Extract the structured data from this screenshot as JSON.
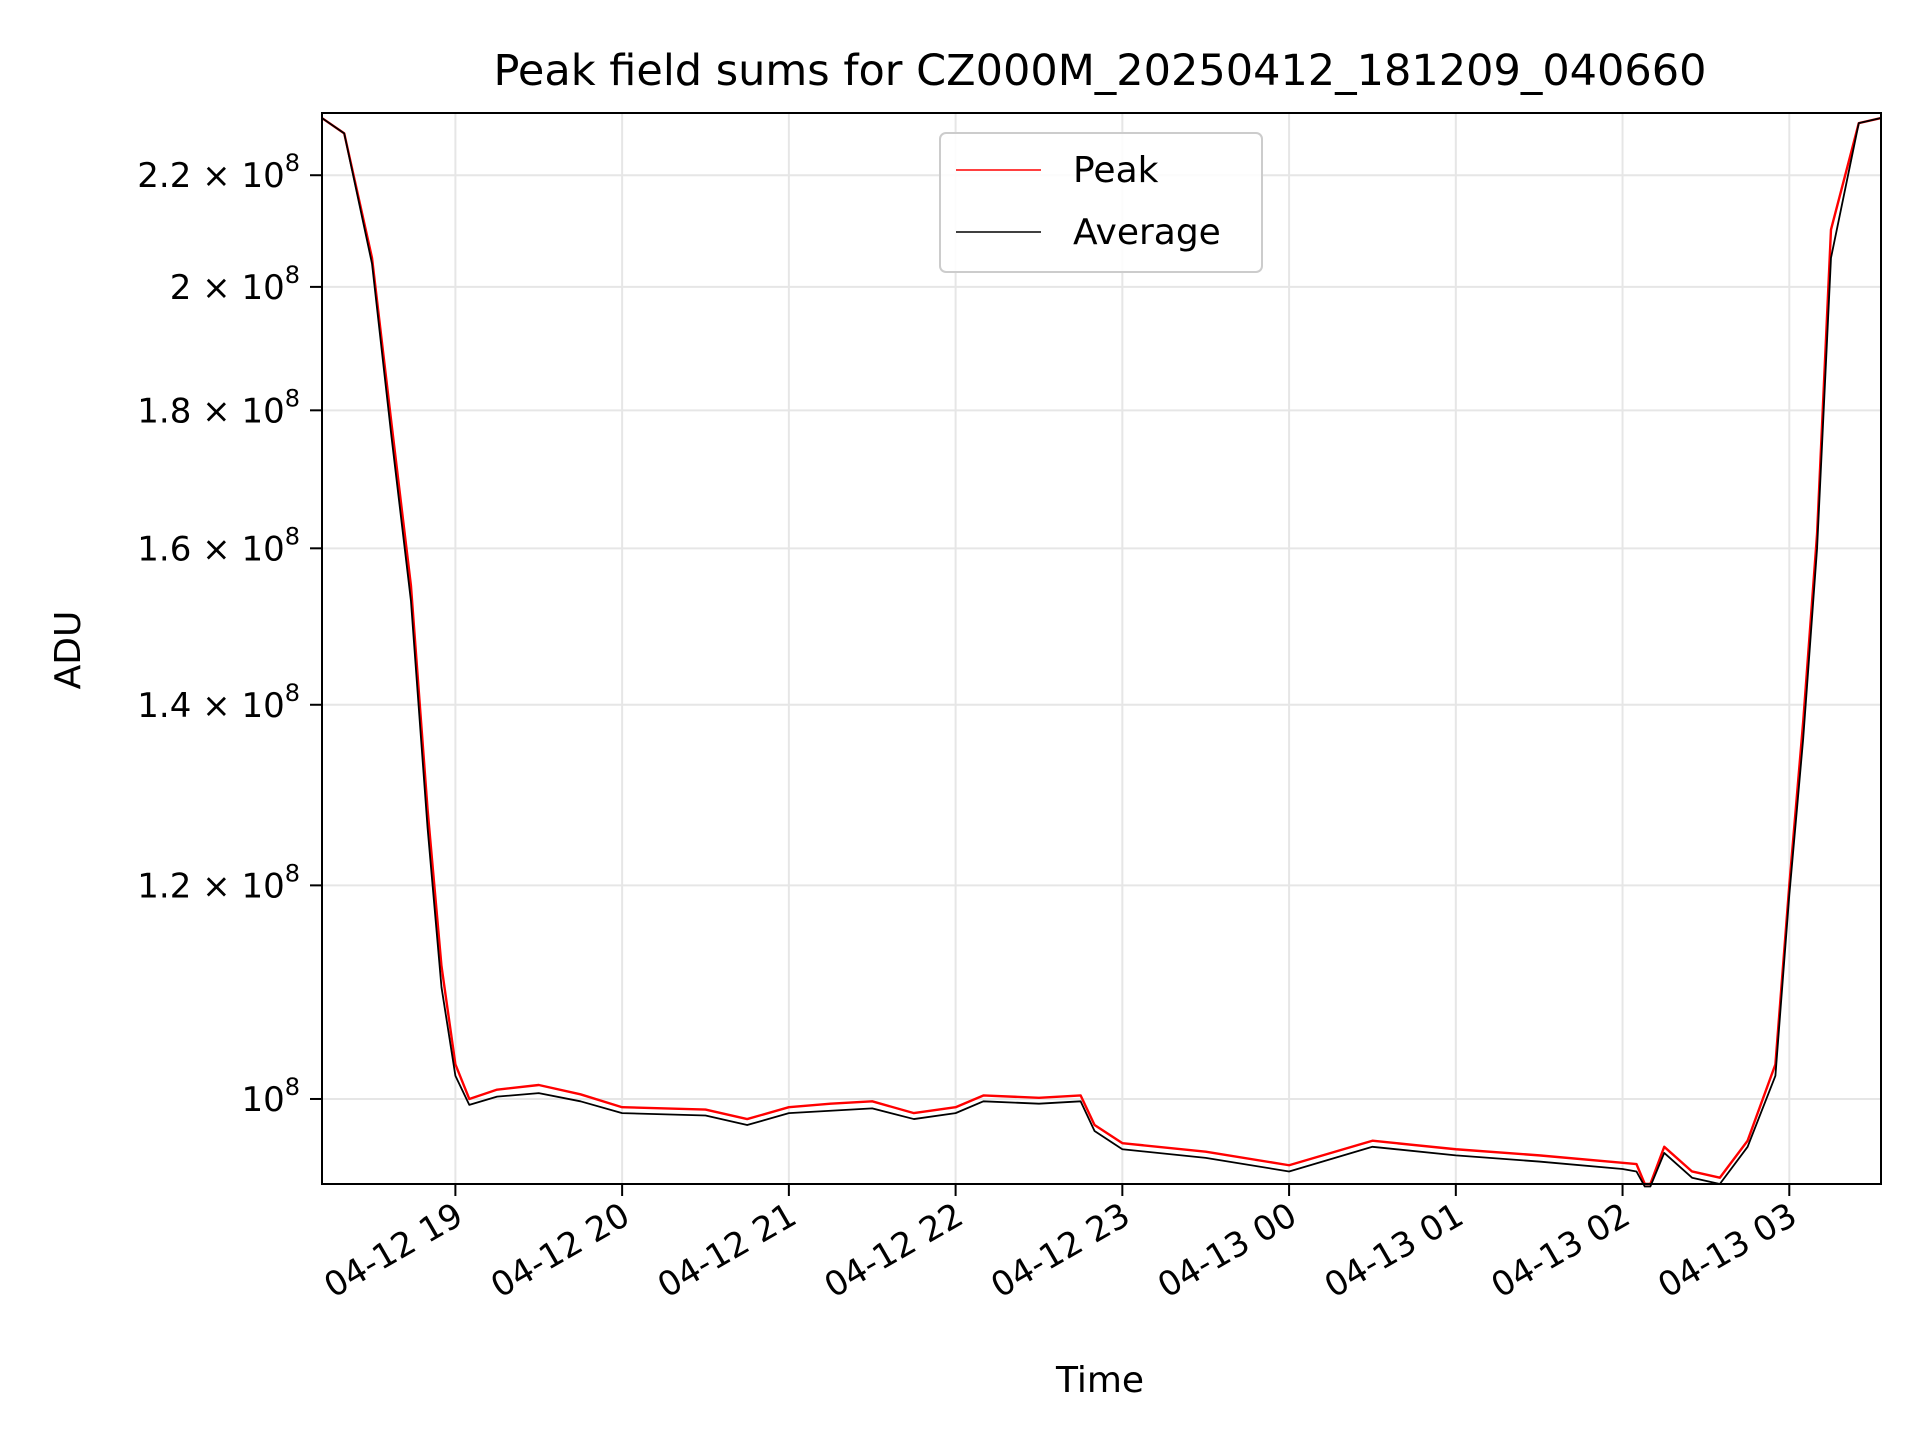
{
  "chart_data": {
    "type": "line",
    "title": "Peak field sums for CZ000M_20250412_181209_040660",
    "xlabel": "Time",
    "ylabel": "ADU",
    "x_unit": "datetime",
    "xlim": [
      "2025-04-12 18:12",
      "2025-04-13 03:33"
    ],
    "ylim": [
      93000000.0,
      232000000.0
    ],
    "yscale": "log",
    "grid": true,
    "legend_position": "top-center",
    "x_ticks": [
      "04-12 19",
      "04-12 20",
      "04-12 21",
      "04-12 22",
      "04-12 23",
      "04-13 00",
      "04-13 01",
      "04-13 02",
      "04-13 03"
    ],
    "x_tick_values": [
      "2025-04-12 19:00",
      "2025-04-12 20:00",
      "2025-04-12 21:00",
      "2025-04-12 22:00",
      "2025-04-12 23:00",
      "2025-04-13 00:00",
      "2025-04-13 01:00",
      "2025-04-13 02:00",
      "2025-04-13 03:00"
    ],
    "y_ticks": [
      {
        "value": 100000000.0,
        "mantissa": "",
        "exponent": "8"
      },
      {
        "value": 120000000.0,
        "mantissa": "1.2",
        "exponent": "8"
      },
      {
        "value": 140000000.0,
        "mantissa": "1.4",
        "exponent": "8"
      },
      {
        "value": 160000000.0,
        "mantissa": "1.6",
        "exponent": "8"
      },
      {
        "value": 180000000.0,
        "mantissa": "1.8",
        "exponent": "8"
      },
      {
        "value": 200000000.0,
        "mantissa": "2",
        "exponent": "8"
      },
      {
        "value": 220000000.0,
        "mantissa": "2.2",
        "exponent": "8"
      }
    ],
    "series": [
      {
        "name": "Peak",
        "color": "#ff0000",
        "x": [
          "2025-04-12 18:12",
          "2025-04-12 18:20",
          "2025-04-12 18:30",
          "2025-04-12 18:37",
          "2025-04-12 18:44",
          "2025-04-12 18:50",
          "2025-04-12 18:55",
          "2025-04-12 19:00",
          "2025-04-12 19:05",
          "2025-04-12 19:15",
          "2025-04-12 19:30",
          "2025-04-12 19:45",
          "2025-04-12 20:00",
          "2025-04-12 20:30",
          "2025-04-12 20:45",
          "2025-04-12 21:00",
          "2025-04-12 21:15",
          "2025-04-12 21:30",
          "2025-04-12 21:45",
          "2025-04-12 22:00",
          "2025-04-12 22:10",
          "2025-04-12 22:30",
          "2025-04-12 22:45",
          "2025-04-12 22:50",
          "2025-04-12 23:00",
          "2025-04-12 23:30",
          "2025-04-13 00:00",
          "2025-04-13 00:30",
          "2025-04-13 01:00",
          "2025-04-13 01:30",
          "2025-04-13 02:00",
          "2025-04-13 02:05",
          "2025-04-13 02:08",
          "2025-04-13 02:10",
          "2025-04-13 02:15",
          "2025-04-13 02:25",
          "2025-04-13 02:35",
          "2025-04-13 02:45",
          "2025-04-13 02:55",
          "2025-04-13 03:00",
          "2025-04-13 03:05",
          "2025-04-13 03:10",
          "2025-04-13 03:15",
          "2025-04-13 03:25",
          "2025-04-13 03:33"
        ],
        "y": [
          231000000.0,
          228000000.0,
          205000000.0,
          178000000.0,
          155000000.0,
          128000000.0,
          112000000.0,
          103000000.0,
          100000000.0,
          100800000.0,
          101200000.0,
          100400000.0,
          99300000.0,
          99100000.0,
          98300000.0,
          99300000.0,
          99600000.0,
          99800000.0,
          98800000.0,
          99300000.0,
          100300000.0,
          100100000.0,
          100300000.0,
          97800000.0,
          96300000.0,
          95600000.0,
          94500000.0,
          96500000.0,
          95800000.0,
          95300000.0,
          94700000.0,
          94600000.0,
          93000000.0,
          93000000.0,
          96000000.0,
          94000000.0,
          93500000.0,
          96500000.0,
          103000000.0,
          120000000.0,
          138000000.0,
          162000000.0,
          210000000.0,
          230000000.0,
          231000000.0
        ]
      },
      {
        "name": "Average",
        "color": "#000000",
        "x": [
          "2025-04-12 18:12",
          "2025-04-12 18:20",
          "2025-04-12 18:30",
          "2025-04-12 18:37",
          "2025-04-12 18:44",
          "2025-04-12 18:50",
          "2025-04-12 18:55",
          "2025-04-12 19:00",
          "2025-04-12 19:05",
          "2025-04-12 19:15",
          "2025-04-12 19:30",
          "2025-04-12 19:45",
          "2025-04-12 20:00",
          "2025-04-12 20:30",
          "2025-04-12 20:45",
          "2025-04-12 21:00",
          "2025-04-12 21:15",
          "2025-04-12 21:30",
          "2025-04-12 21:45",
          "2025-04-12 22:00",
          "2025-04-12 22:10",
          "2025-04-12 22:30",
          "2025-04-12 22:45",
          "2025-04-12 22:50",
          "2025-04-12 23:00",
          "2025-04-12 23:30",
          "2025-04-13 00:00",
          "2025-04-13 00:30",
          "2025-04-13 01:00",
          "2025-04-13 01:30",
          "2025-04-13 02:00",
          "2025-04-13 02:05",
          "2025-04-13 02:08",
          "2025-04-13 02:10",
          "2025-04-13 02:15",
          "2025-04-13 02:25",
          "2025-04-13 02:35",
          "2025-04-13 02:45",
          "2025-04-13 02:55",
          "2025-04-13 03:00",
          "2025-04-13 03:05",
          "2025-04-13 03:10",
          "2025-04-13 03:15",
          "2025-04-13 03:25",
          "2025-04-13 03:33"
        ],
        "y": [
          231000000.0,
          228000000.0,
          204000000.0,
          176000000.0,
          153000000.0,
          126000000.0,
          110000000.0,
          102000000.0,
          99500000.0,
          100200000.0,
          100500000.0,
          99800000.0,
          98800000.0,
          98600000.0,
          97800000.0,
          98800000.0,
          99000000.0,
          99200000.0,
          98300000.0,
          98800000.0,
          99800000.0,
          99600000.0,
          99800000.0,
          97300000.0,
          95800000.0,
          95100000.0,
          94000000.0,
          96000000.0,
          95300000.0,
          94800000.0,
          94200000.0,
          94000000.0,
          92800000.0,
          92800000.0,
          95500000.0,
          93500000.0,
          93000000.0,
          96000000.0,
          102000000.0,
          119000000.0,
          136000000.0,
          160000000.0,
          205000000.0,
          230000000.0,
          231000000.0
        ]
      }
    ]
  }
}
